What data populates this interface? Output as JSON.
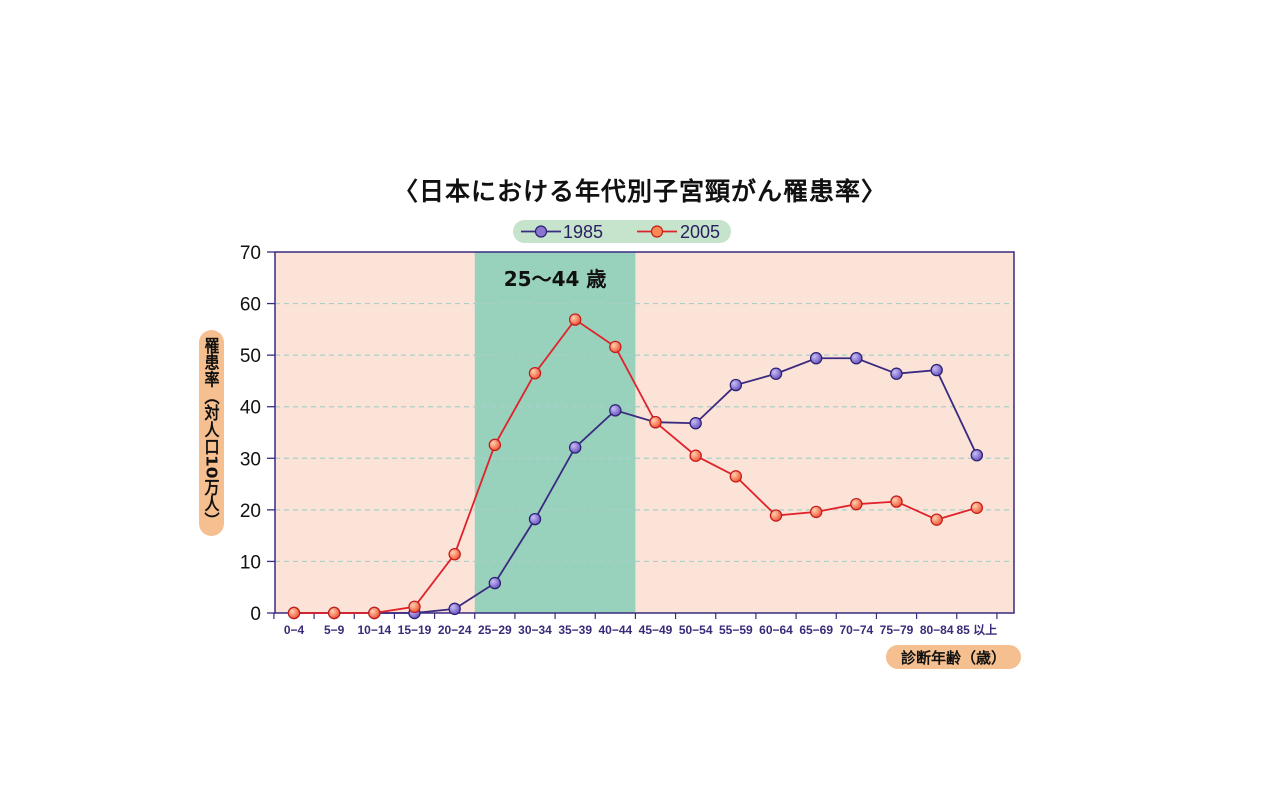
{
  "title": "〈日本における年代別子宮頸がん罹患率〉",
  "chart_data": {
    "type": "line",
    "categories": [
      "0−4",
      "5−9",
      "10−14",
      "15−19",
      "20−24",
      "25−29",
      "30−34",
      "35−39",
      "40−44",
      "45−49",
      "50−54",
      "55−59",
      "60−64",
      "65−69",
      "70−74",
      "75−79",
      "80−84",
      "85 以上"
    ],
    "series": [
      {
        "name": "1985",
        "color": "#3a2a80",
        "values": [
          0,
          0,
          0,
          0,
          0.8,
          5.8,
          18.2,
          32.1,
          39.3,
          37.0,
          36.8,
          44.2,
          46.4,
          49.4,
          49.4,
          46.4,
          47.1,
          30.6
        ]
      },
      {
        "name": "2005",
        "color": "#e0222a",
        "values": [
          0,
          0,
          0,
          1.2,
          11.4,
          32.6,
          46.5,
          56.9,
          51.6,
          37.0,
          30.5,
          26.5,
          18.9,
          19.6,
          21.1,
          21.6,
          18.1,
          20.4
        ]
      }
    ],
    "ylabel": "罹患率（対人口10万人）",
    "xlabel": "診断年齢（歳）",
    "ylim": [
      0,
      70
    ],
    "yticks": [
      0,
      10,
      20,
      30,
      40,
      50,
      60,
      70
    ],
    "grid": true,
    "legend_position": "top-center",
    "highlight_band": {
      "label": "25〜44 歳",
      "from_category": "25−29",
      "to_category": "40−44",
      "color": "#98d2bc"
    },
    "background_color": "#fbe3d8"
  }
}
